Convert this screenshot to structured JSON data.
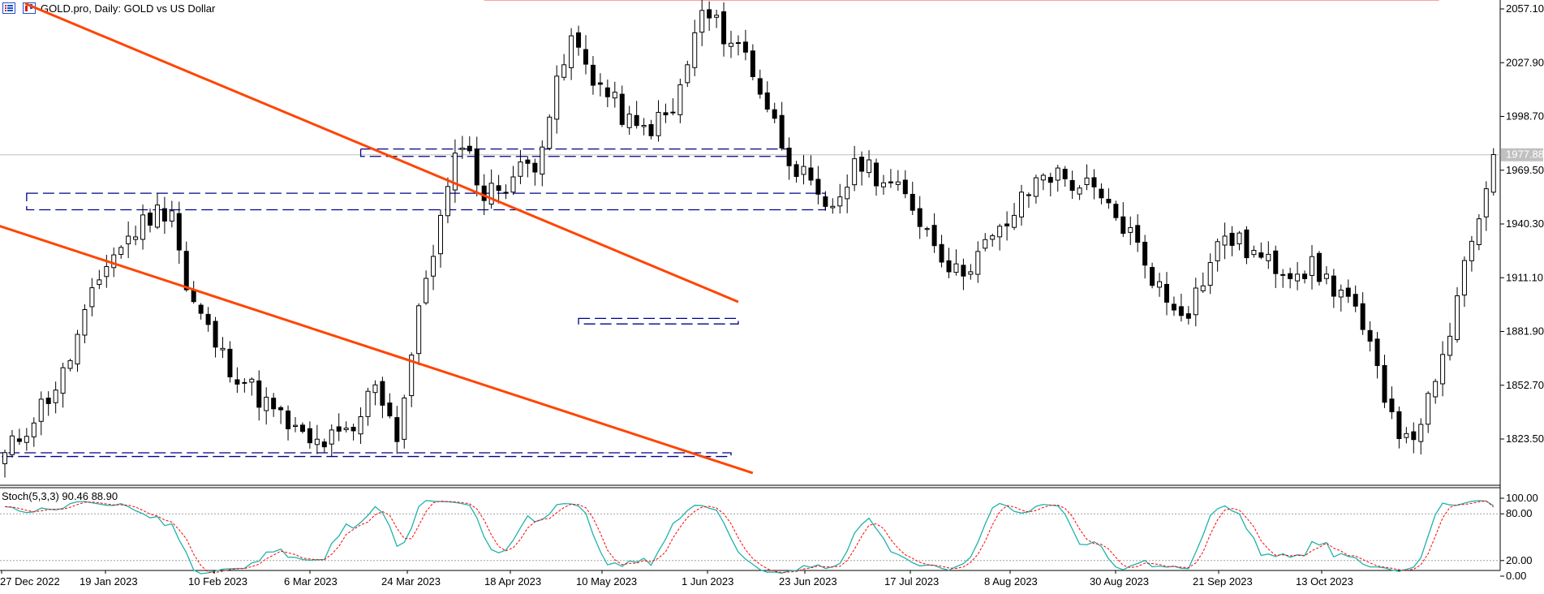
{
  "header": {
    "title": "GOLD.pro, Daily:  GOLD vs US Dollar",
    "icons": [
      "list-icon",
      "chart-icon"
    ]
  },
  "indicator": {
    "label": "Stoch(5,3,3) 90.46 88.90",
    "main_color": "#20b2aa",
    "signal_color": "#ff0000"
  },
  "colors": {
    "channel": "#ff4500",
    "zones": "#00008b",
    "resistance": "#ff0000",
    "bull_body": "#ffffff",
    "bear_body": "#000000"
  },
  "chart_data": {
    "type": "candlestick",
    "symbol": "GOLD.pro",
    "timeframe": "Daily",
    "ylim": [
      1800,
      2065
    ],
    "y_ticks": [
      "2057.10",
      "2027.90",
      "1998.70",
      "1969.50",
      "1940.30",
      "1911.10",
      "1881.90",
      "1852.70",
      "1823.50"
    ],
    "current_price": "1977.88",
    "x_ticks": [
      "27 Dec 2022",
      "19 Jan 2023",
      "10 Feb 2023",
      "6 Mar 2023",
      "24 Mar 2023",
      "18 Apr 2023",
      "10 May 2023",
      "1 Jun 2023",
      "23 Jun 2023",
      "17 Jul 2023",
      "8 Aug 2023",
      "30 Aug 2023",
      "21 Sep 2023",
      "13 Oct 2023"
    ],
    "bars": 206,
    "anchors": [
      [
        0,
        1814
      ],
      [
        8,
        1858
      ],
      [
        14,
        1920
      ],
      [
        20,
        1945
      ],
      [
        23,
        1950
      ],
      [
        25,
        1904
      ],
      [
        30,
        1868
      ],
      [
        37,
        1838
      ],
      [
        42,
        1820
      ],
      [
        48,
        1826
      ],
      [
        51,
        1856
      ],
      [
        54,
        1826
      ],
      [
        58,
        1912
      ],
      [
        63,
        1988
      ],
      [
        66,
        1955
      ],
      [
        73,
        1975
      ],
      [
        78,
        2040
      ],
      [
        82,
        2015
      ],
      [
        87,
        1990
      ],
      [
        92,
        2000
      ],
      [
        96,
        2055
      ],
      [
        102,
        2033
      ],
      [
        107,
        1985
      ],
      [
        113,
        1945
      ],
      [
        118,
        1975
      ],
      [
        125,
        1950
      ],
      [
        131,
        1913
      ],
      [
        137,
        1935
      ],
      [
        143,
        1969
      ],
      [
        149,
        1960
      ],
      [
        155,
        1935
      ],
      [
        160,
        1898
      ],
      [
        163,
        1895
      ],
      [
        168,
        1935
      ],
      [
        174,
        1918
      ],
      [
        180,
        1916
      ],
      [
        185,
        1900
      ],
      [
        193,
        1820
      ],
      [
        197,
        1850
      ],
      [
        202,
        1930
      ],
      [
        205,
        1978
      ]
    ],
    "channel_upper": [
      [
        2.8,
        2060
      ],
      [
        101,
        1898
      ]
    ],
    "channel_lower": [
      [
        -14.5,
        1957
      ],
      [
        103,
        1805
      ]
    ],
    "resistance": 2062,
    "zones": [
      {
        "x0": 3,
        "x1": 113,
        "y0": 1948,
        "y1": 1957
      },
      {
        "x0": 49,
        "x1": 108,
        "y0": 1977,
        "y1": 1981
      },
      {
        "x0": 79,
        "x1": 101,
        "y0": 1886,
        "y1": 1889
      },
      {
        "x0": -4,
        "x1": 100,
        "y0": 1814,
        "y1": 1816
      }
    ],
    "stoch_ticks": [
      "100.00",
      "80.00",
      "20.00",
      "0.00"
    ],
    "stoch_last": {
      "main": 90.46,
      "signal": 88.9
    }
  }
}
